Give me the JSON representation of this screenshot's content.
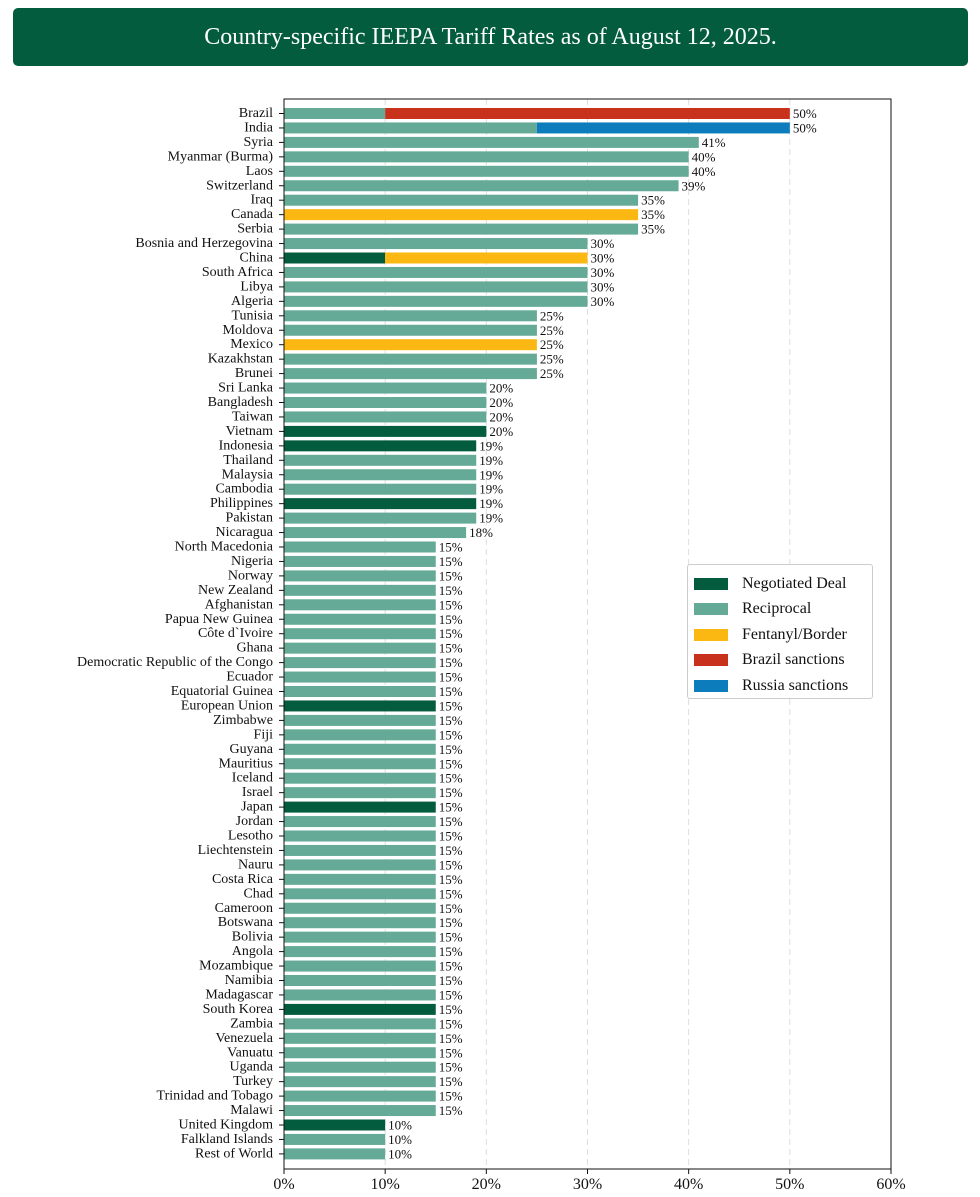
{
  "header": {
    "title": "Country-specific IEEPA Tariff Rates as of August 12, 2025."
  },
  "colors": {
    "Negotiated Deal": "#045c3e",
    "Reciprocal": "#64aa96",
    "Fentanyl/Border": "#fbb812",
    "Brazil sanctions": "#c8321c",
    "Russia sanctions": "#0c7cbc"
  },
  "chart_data": {
    "type": "bar",
    "orientation": "horizontal",
    "stacked": true,
    "title": "Country-specific IEEPA Tariff Rates as of August 12, 2025.",
    "xlabel": "",
    "ylabel": "",
    "xlim": [
      0,
      60
    ],
    "xticks": [
      "0%",
      "10%",
      "20%",
      "30%",
      "40%",
      "50%",
      "60%"
    ],
    "grid": "vertical dashed",
    "legend_position": "center-right",
    "legend": [
      "Negotiated Deal",
      "Reciprocal",
      "Fentanyl/Border",
      "Brazil sanctions",
      "Russia sanctions"
    ],
    "bars": [
      {
        "label": "Brazil",
        "segments": [
          {
            "type": "Reciprocal",
            "value": 10
          },
          {
            "type": "Brazil sanctions",
            "value": 40
          }
        ],
        "total": "50%"
      },
      {
        "label": "India",
        "segments": [
          {
            "type": "Reciprocal",
            "value": 25
          },
          {
            "type": "Russia sanctions",
            "value": 25
          }
        ],
        "total": "50%"
      },
      {
        "label": "Syria",
        "segments": [
          {
            "type": "Reciprocal",
            "value": 41
          }
        ],
        "total": "41%"
      },
      {
        "label": "Myanmar (Burma)",
        "segments": [
          {
            "type": "Reciprocal",
            "value": 40
          }
        ],
        "total": "40%"
      },
      {
        "label": "Laos",
        "segments": [
          {
            "type": "Reciprocal",
            "value": 40
          }
        ],
        "total": "40%"
      },
      {
        "label": "Switzerland",
        "segments": [
          {
            "type": "Reciprocal",
            "value": 39
          }
        ],
        "total": "39%"
      },
      {
        "label": "Iraq",
        "segments": [
          {
            "type": "Reciprocal",
            "value": 35
          }
        ],
        "total": "35%"
      },
      {
        "label": "Canada",
        "segments": [
          {
            "type": "Fentanyl/Border",
            "value": 35
          }
        ],
        "total": "35%"
      },
      {
        "label": "Serbia",
        "segments": [
          {
            "type": "Reciprocal",
            "value": 35
          }
        ],
        "total": "35%"
      },
      {
        "label": "Bosnia and Herzegovina",
        "segments": [
          {
            "type": "Reciprocal",
            "value": 30
          }
        ],
        "total": "30%"
      },
      {
        "label": "China",
        "segments": [
          {
            "type": "Negotiated Deal",
            "value": 10
          },
          {
            "type": "Fentanyl/Border",
            "value": 20
          }
        ],
        "total": "30%"
      },
      {
        "label": "South Africa",
        "segments": [
          {
            "type": "Reciprocal",
            "value": 30
          }
        ],
        "total": "30%"
      },
      {
        "label": "Libya",
        "segments": [
          {
            "type": "Reciprocal",
            "value": 30
          }
        ],
        "total": "30%"
      },
      {
        "label": "Algeria",
        "segments": [
          {
            "type": "Reciprocal",
            "value": 30
          }
        ],
        "total": "30%"
      },
      {
        "label": "Tunisia",
        "segments": [
          {
            "type": "Reciprocal",
            "value": 25
          }
        ],
        "total": "25%"
      },
      {
        "label": "Moldova",
        "segments": [
          {
            "type": "Reciprocal",
            "value": 25
          }
        ],
        "total": "25%"
      },
      {
        "label": "Mexico",
        "segments": [
          {
            "type": "Fentanyl/Border",
            "value": 25
          }
        ],
        "total": "25%"
      },
      {
        "label": "Kazakhstan",
        "segments": [
          {
            "type": "Reciprocal",
            "value": 25
          }
        ],
        "total": "25%"
      },
      {
        "label": "Brunei",
        "segments": [
          {
            "type": "Reciprocal",
            "value": 25
          }
        ],
        "total": "25%"
      },
      {
        "label": "Sri Lanka",
        "segments": [
          {
            "type": "Reciprocal",
            "value": 20
          }
        ],
        "total": "20%"
      },
      {
        "label": "Bangladesh",
        "segments": [
          {
            "type": "Reciprocal",
            "value": 20
          }
        ],
        "total": "20%"
      },
      {
        "label": "Taiwan",
        "segments": [
          {
            "type": "Reciprocal",
            "value": 20
          }
        ],
        "total": "20%"
      },
      {
        "label": "Vietnam",
        "segments": [
          {
            "type": "Negotiated Deal",
            "value": 20
          }
        ],
        "total": "20%"
      },
      {
        "label": "Indonesia",
        "segments": [
          {
            "type": "Negotiated Deal",
            "value": 19
          }
        ],
        "total": "19%"
      },
      {
        "label": "Thailand",
        "segments": [
          {
            "type": "Reciprocal",
            "value": 19
          }
        ],
        "total": "19%"
      },
      {
        "label": "Malaysia",
        "segments": [
          {
            "type": "Reciprocal",
            "value": 19
          }
        ],
        "total": "19%"
      },
      {
        "label": "Cambodia",
        "segments": [
          {
            "type": "Reciprocal",
            "value": 19
          }
        ],
        "total": "19%"
      },
      {
        "label": "Philippines",
        "segments": [
          {
            "type": "Negotiated Deal",
            "value": 19
          }
        ],
        "total": "19%"
      },
      {
        "label": "Pakistan",
        "segments": [
          {
            "type": "Reciprocal",
            "value": 19
          }
        ],
        "total": "19%"
      },
      {
        "label": "Nicaragua",
        "segments": [
          {
            "type": "Reciprocal",
            "value": 18
          }
        ],
        "total": "18%"
      },
      {
        "label": "North Macedonia",
        "segments": [
          {
            "type": "Reciprocal",
            "value": 15
          }
        ],
        "total": "15%"
      },
      {
        "label": "Nigeria",
        "segments": [
          {
            "type": "Reciprocal",
            "value": 15
          }
        ],
        "total": "15%"
      },
      {
        "label": "Norway",
        "segments": [
          {
            "type": "Reciprocal",
            "value": 15
          }
        ],
        "total": "15%"
      },
      {
        "label": "New Zealand",
        "segments": [
          {
            "type": "Reciprocal",
            "value": 15
          }
        ],
        "total": "15%"
      },
      {
        "label": "Afghanistan",
        "segments": [
          {
            "type": "Reciprocal",
            "value": 15
          }
        ],
        "total": "15%"
      },
      {
        "label": "Papua New Guinea",
        "segments": [
          {
            "type": "Reciprocal",
            "value": 15
          }
        ],
        "total": "15%"
      },
      {
        "label": "Côte d`Ivoire",
        "segments": [
          {
            "type": "Reciprocal",
            "value": 15
          }
        ],
        "total": "15%"
      },
      {
        "label": "Ghana",
        "segments": [
          {
            "type": "Reciprocal",
            "value": 15
          }
        ],
        "total": "15%"
      },
      {
        "label": "Democratic Republic of the Congo",
        "segments": [
          {
            "type": "Reciprocal",
            "value": 15
          }
        ],
        "total": "15%"
      },
      {
        "label": "Ecuador",
        "segments": [
          {
            "type": "Reciprocal",
            "value": 15
          }
        ],
        "total": "15%"
      },
      {
        "label": "Equatorial Guinea",
        "segments": [
          {
            "type": "Reciprocal",
            "value": 15
          }
        ],
        "total": "15%"
      },
      {
        "label": "European Union",
        "segments": [
          {
            "type": "Negotiated Deal",
            "value": 15
          }
        ],
        "total": "15%"
      },
      {
        "label": "Zimbabwe",
        "segments": [
          {
            "type": "Reciprocal",
            "value": 15
          }
        ],
        "total": "15%"
      },
      {
        "label": "Fiji",
        "segments": [
          {
            "type": "Reciprocal",
            "value": 15
          }
        ],
        "total": "15%"
      },
      {
        "label": "Guyana",
        "segments": [
          {
            "type": "Reciprocal",
            "value": 15
          }
        ],
        "total": "15%"
      },
      {
        "label": "Mauritius",
        "segments": [
          {
            "type": "Reciprocal",
            "value": 15
          }
        ],
        "total": "15%"
      },
      {
        "label": "Iceland",
        "segments": [
          {
            "type": "Reciprocal",
            "value": 15
          }
        ],
        "total": "15%"
      },
      {
        "label": "Israel",
        "segments": [
          {
            "type": "Reciprocal",
            "value": 15
          }
        ],
        "total": "15%"
      },
      {
        "label": "Japan",
        "segments": [
          {
            "type": "Negotiated Deal",
            "value": 15
          }
        ],
        "total": "15%"
      },
      {
        "label": "Jordan",
        "segments": [
          {
            "type": "Reciprocal",
            "value": 15
          }
        ],
        "total": "15%"
      },
      {
        "label": "Lesotho",
        "segments": [
          {
            "type": "Reciprocal",
            "value": 15
          }
        ],
        "total": "15%"
      },
      {
        "label": "Liechtenstein",
        "segments": [
          {
            "type": "Reciprocal",
            "value": 15
          }
        ],
        "total": "15%"
      },
      {
        "label": "Nauru",
        "segments": [
          {
            "type": "Reciprocal",
            "value": 15
          }
        ],
        "total": "15%"
      },
      {
        "label": "Costa Rica",
        "segments": [
          {
            "type": "Reciprocal",
            "value": 15
          }
        ],
        "total": "15%"
      },
      {
        "label": "Chad",
        "segments": [
          {
            "type": "Reciprocal",
            "value": 15
          }
        ],
        "total": "15%"
      },
      {
        "label": "Cameroon",
        "segments": [
          {
            "type": "Reciprocal",
            "value": 15
          }
        ],
        "total": "15%"
      },
      {
        "label": "Botswana",
        "segments": [
          {
            "type": "Reciprocal",
            "value": 15
          }
        ],
        "total": "15%"
      },
      {
        "label": "Bolivia",
        "segments": [
          {
            "type": "Reciprocal",
            "value": 15
          }
        ],
        "total": "15%"
      },
      {
        "label": "Angola",
        "segments": [
          {
            "type": "Reciprocal",
            "value": 15
          }
        ],
        "total": "15%"
      },
      {
        "label": "Mozambique",
        "segments": [
          {
            "type": "Reciprocal",
            "value": 15
          }
        ],
        "total": "15%"
      },
      {
        "label": "Namibia",
        "segments": [
          {
            "type": "Reciprocal",
            "value": 15
          }
        ],
        "total": "15%"
      },
      {
        "label": "Madagascar",
        "segments": [
          {
            "type": "Reciprocal",
            "value": 15
          }
        ],
        "total": "15%"
      },
      {
        "label": "South Korea",
        "segments": [
          {
            "type": "Negotiated Deal",
            "value": 15
          }
        ],
        "total": "15%"
      },
      {
        "label": "Zambia",
        "segments": [
          {
            "type": "Reciprocal",
            "value": 15
          }
        ],
        "total": "15%"
      },
      {
        "label": "Venezuela",
        "segments": [
          {
            "type": "Reciprocal",
            "value": 15
          }
        ],
        "total": "15%"
      },
      {
        "label": "Vanuatu",
        "segments": [
          {
            "type": "Reciprocal",
            "value": 15
          }
        ],
        "total": "15%"
      },
      {
        "label": "Uganda",
        "segments": [
          {
            "type": "Reciprocal",
            "value": 15
          }
        ],
        "total": "15%"
      },
      {
        "label": "Turkey",
        "segments": [
          {
            "type": "Reciprocal",
            "value": 15
          }
        ],
        "total": "15%"
      },
      {
        "label": "Trinidad and Tobago",
        "segments": [
          {
            "type": "Reciprocal",
            "value": 15
          }
        ],
        "total": "15%"
      },
      {
        "label": "Malawi",
        "segments": [
          {
            "type": "Reciprocal",
            "value": 15
          }
        ],
        "total": "15%"
      },
      {
        "label": "United Kingdom",
        "segments": [
          {
            "type": "Negotiated Deal",
            "value": 10
          }
        ],
        "total": "10%"
      },
      {
        "label": "Falkland Islands",
        "segments": [
          {
            "type": "Reciprocal",
            "value": 10
          }
        ],
        "total": "10%"
      },
      {
        "label": "Rest of World",
        "segments": [
          {
            "type": "Reciprocal",
            "value": 10
          }
        ],
        "total": "10%"
      }
    ]
  }
}
